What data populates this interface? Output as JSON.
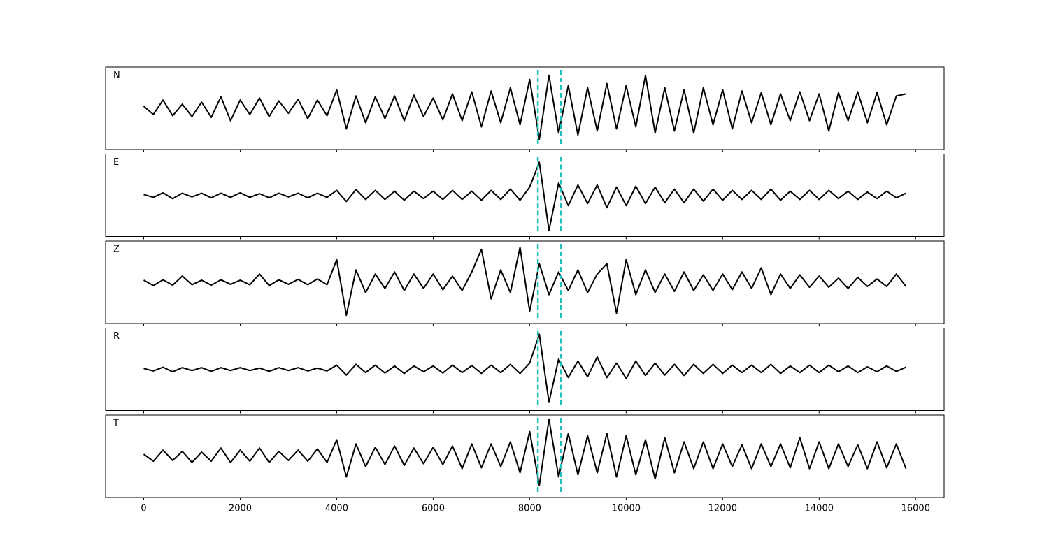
{
  "chart_data": {
    "type": "line",
    "x": [
      0,
      200,
      400,
      600,
      800,
      1000,
      1200,
      1400,
      1600,
      1800,
      2000,
      2200,
      2400,
      2600,
      2800,
      3000,
      3200,
      3400,
      3600,
      3800,
      4000,
      4200,
      4400,
      4600,
      4800,
      5000,
      5200,
      5400,
      5600,
      5800,
      6000,
      6200,
      6400,
      6600,
      6800,
      7000,
      7200,
      7400,
      7600,
      7800,
      8000,
      8200,
      8400,
      8600,
      8800,
      9000,
      9200,
      9400,
      9600,
      9800,
      10000,
      10200,
      10400,
      10600,
      10800,
      11000,
      11200,
      11400,
      11600,
      11800,
      12000,
      12200,
      12400,
      12600,
      12800,
      13000,
      13200,
      13400,
      13600,
      13800,
      14000,
      14200,
      14400,
      14600,
      14800,
      15000,
      15200,
      15400,
      15600,
      15800
    ],
    "series": [
      {
        "name": "N",
        "color": "#000000",
        "values": [
          0.05,
          -0.15,
          0.2,
          -0.18,
          0.1,
          -0.2,
          0.15,
          -0.22,
          0.28,
          -0.3,
          0.2,
          -0.15,
          0.25,
          -0.2,
          0.18,
          -0.12,
          0.22,
          -0.25,
          0.2,
          -0.18,
          0.45,
          -0.5,
          0.3,
          -0.35,
          0.28,
          -0.25,
          0.3,
          -0.3,
          0.32,
          -0.2,
          0.25,
          -0.28,
          0.35,
          -0.3,
          0.4,
          -0.45,
          0.42,
          -0.35,
          0.5,
          -0.4,
          0.7,
          -0.75,
          0.8,
          -0.6,
          0.55,
          -0.65,
          0.5,
          -0.55,
          0.6,
          -0.5,
          0.55,
          -0.45,
          0.8,
          -0.6,
          0.5,
          -0.55,
          0.45,
          -0.6,
          0.5,
          -0.4,
          0.45,
          -0.5,
          0.42,
          -0.35,
          0.38,
          -0.4,
          0.35,
          -0.3,
          0.4,
          -0.3,
          0.35,
          -0.55,
          0.38,
          -0.3,
          0.4,
          -0.35,
          0.38,
          -0.4,
          0.3,
          0.35
        ]
      },
      {
        "name": "E",
        "color": "#000000",
        "values": [
          0.02,
          -0.05,
          0.06,
          -0.08,
          0.05,
          -0.04,
          0.05,
          -0.06,
          0.05,
          -0.05,
          0.06,
          -0.05,
          0.04,
          -0.06,
          0.05,
          -0.04,
          0.05,
          -0.06,
          0.05,
          -0.05,
          0.12,
          -0.15,
          0.14,
          -0.1,
          0.12,
          -0.1,
          0.1,
          -0.12,
          0.1,
          -0.08,
          0.1,
          -0.1,
          0.12,
          -0.1,
          0.1,
          -0.12,
          0.12,
          -0.1,
          0.15,
          -0.12,
          0.2,
          0.8,
          -0.85,
          0.3,
          -0.25,
          0.25,
          -0.2,
          0.25,
          -0.3,
          0.2,
          -0.25,
          0.22,
          -0.2,
          0.2,
          -0.18,
          0.15,
          -0.18,
          0.15,
          -0.14,
          0.15,
          -0.12,
          0.12,
          -0.1,
          0.12,
          -0.1,
          0.15,
          -0.12,
          0.1,
          -0.1,
          0.12,
          -0.1,
          0.12,
          -0.08,
          0.1,
          -0.1,
          0.08,
          -0.08,
          0.1,
          -0.06,
          0.05
        ]
      },
      {
        "name": "Z",
        "color": "#000000",
        "values": [
          0.05,
          -0.08,
          0.06,
          -0.07,
          0.15,
          -0.06,
          0.05,
          -0.07,
          0.06,
          -0.05,
          0.05,
          -0.06,
          0.2,
          -0.08,
          0.06,
          -0.05,
          0.07,
          -0.06,
          0.08,
          -0.06,
          0.55,
          -0.8,
          0.3,
          -0.25,
          0.2,
          -0.15,
          0.25,
          -0.2,
          0.2,
          -0.15,
          0.2,
          -0.18,
          0.15,
          -0.2,
          0.25,
          0.8,
          -0.4,
          0.3,
          -0.25,
          0.85,
          -0.7,
          0.45,
          -0.3,
          0.25,
          -0.2,
          0.3,
          -0.25,
          0.2,
          0.45,
          -0.75,
          0.55,
          -0.3,
          0.3,
          -0.25,
          0.2,
          -0.22,
          0.25,
          -0.2,
          0.18,
          -0.2,
          0.2,
          -0.18,
          0.25,
          -0.15,
          0.35,
          -0.3,
          0.2,
          -0.15,
          0.18,
          -0.12,
          0.15,
          -0.12,
          0.1,
          -0.15,
          0.12,
          -0.1,
          0.08,
          -0.1,
          0.2,
          -0.1
        ]
      },
      {
        "name": "R",
        "color": "#000000",
        "values": [
          0.02,
          -0.04,
          0.05,
          -0.06,
          0.04,
          -0.03,
          0.04,
          -0.05,
          0.04,
          -0.03,
          0.04,
          -0.03,
          0.03,
          -0.05,
          0.04,
          -0.03,
          0.04,
          -0.04,
          0.03,
          -0.04,
          0.1,
          -0.14,
          0.12,
          -0.08,
          0.1,
          -0.09,
          0.08,
          -0.1,
          0.08,
          -0.06,
          0.08,
          -0.09,
          0.1,
          -0.08,
          0.09,
          -0.1,
          0.1,
          -0.08,
          0.12,
          -0.1,
          0.15,
          0.85,
          -0.8,
          0.25,
          -0.2,
          0.2,
          -0.18,
          0.3,
          -0.2,
          0.15,
          -0.22,
          0.2,
          -0.15,
          0.15,
          -0.14,
          0.12,
          -0.15,
          0.12,
          -0.1,
          0.12,
          -0.1,
          0.1,
          -0.08,
          0.1,
          -0.08,
          0.12,
          -0.1,
          0.08,
          -0.08,
          0.1,
          -0.08,
          0.1,
          -0.06,
          0.08,
          -0.08,
          0.06,
          -0.06,
          0.08,
          -0.05,
          0.05
        ]
      },
      {
        "name": "T",
        "color": "#000000",
        "values": [
          0.05,
          -0.12,
          0.15,
          -0.1,
          0.12,
          -0.15,
          0.1,
          -0.12,
          0.2,
          -0.15,
          0.15,
          -0.12,
          0.2,
          -0.15,
          0.12,
          -0.1,
          0.15,
          -0.12,
          0.18,
          -0.15,
          0.4,
          -0.5,
          0.3,
          -0.25,
          0.22,
          -0.2,
          0.25,
          -0.22,
          0.2,
          -0.18,
          0.22,
          -0.2,
          0.25,
          -0.3,
          0.3,
          -0.28,
          0.3,
          -0.25,
          0.35,
          -0.4,
          0.6,
          -0.7,
          0.9,
          -0.5,
          0.55,
          -0.45,
          0.5,
          -0.4,
          0.55,
          -0.5,
          0.5,
          -0.45,
          0.4,
          -0.55,
          0.45,
          -0.4,
          0.35,
          -0.3,
          0.35,
          -0.3,
          0.3,
          -0.25,
          0.28,
          -0.3,
          0.3,
          -0.25,
          0.3,
          -0.28,
          0.45,
          -0.3,
          0.35,
          -0.3,
          0.3,
          -0.25,
          0.28,
          -0.3,
          0.35,
          -0.28,
          0.3,
          -0.3
        ]
      }
    ],
    "xlim": [
      -790,
      16590
    ],
    "xticks": [
      0,
      2000,
      4000,
      6000,
      8000,
      10000,
      12000,
      14000,
      16000
    ],
    "ylim": [
      -1,
      1
    ],
    "vlines": [
      8170,
      8650
    ],
    "vline_color": "#1fbfbf"
  }
}
